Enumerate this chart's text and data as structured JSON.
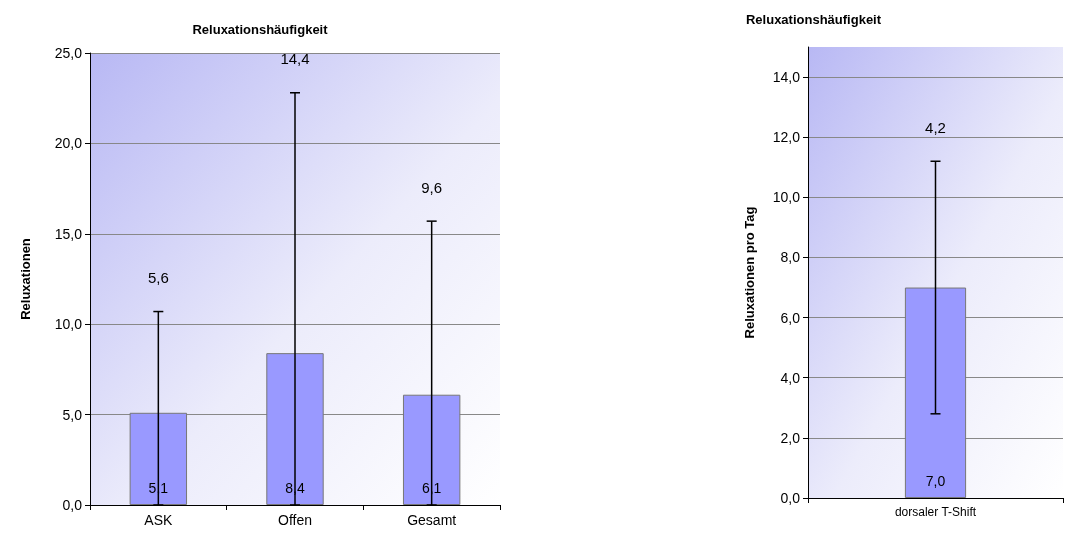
{
  "chart_data": [
    {
      "type": "bar",
      "title": "Reluxationshäufigkeit",
      "ylabel": "Reluxationen",
      "categories": [
        "ASK",
        "Offen",
        "Gesamt"
      ],
      "values": [
        5.1,
        8.4,
        6.1
      ],
      "color": "#9999ff",
      "value_labels": [
        "5,1",
        "8,4",
        "6,1"
      ],
      "errors": [
        [
          0,
          10.7
        ],
        [
          0,
          22.8
        ],
        [
          0,
          15.7
        ]
      ],
      "annotations": [
        "5,6",
        "14,4",
        "9,6"
      ],
      "ylim": [
        0,
        25
      ],
      "yticks": [
        {
          "value": 0,
          "label": "0,0"
        },
        {
          "value": 5,
          "label": "5,0"
        },
        {
          "value": 10,
          "label": "10,0"
        },
        {
          "value": 15,
          "label": "15,0"
        },
        {
          "value": 20,
          "label": "20,0"
        },
        {
          "value": 25,
          "label": "25,0"
        }
      ],
      "grid": "y"
    },
    {
      "type": "bar",
      "title": "Reluxationshäufigkeit",
      "ylabel": "Reluxationen pro Tag",
      "categories": [
        "dorsaler T-Shift"
      ],
      "values": [
        7.0
      ],
      "color": "#9999ff",
      "value_labels": [
        "7,0"
      ],
      "errors": [
        [
          2.8,
          11.2
        ]
      ],
      "annotations": [
        "4,2"
      ],
      "ylim": [
        0,
        15
      ],
      "yticks": [
        {
          "value": 0,
          "label": "0,0"
        },
        {
          "value": 2,
          "label": "2,0"
        },
        {
          "value": 4,
          "label": "4,0"
        },
        {
          "value": 6,
          "label": "6,0"
        },
        {
          "value": 8,
          "label": "8,0"
        },
        {
          "value": 10,
          "label": "10,0"
        },
        {
          "value": 12,
          "label": "12,0"
        },
        {
          "value": 14,
          "label": "14,0"
        }
      ],
      "grid": "y"
    }
  ]
}
